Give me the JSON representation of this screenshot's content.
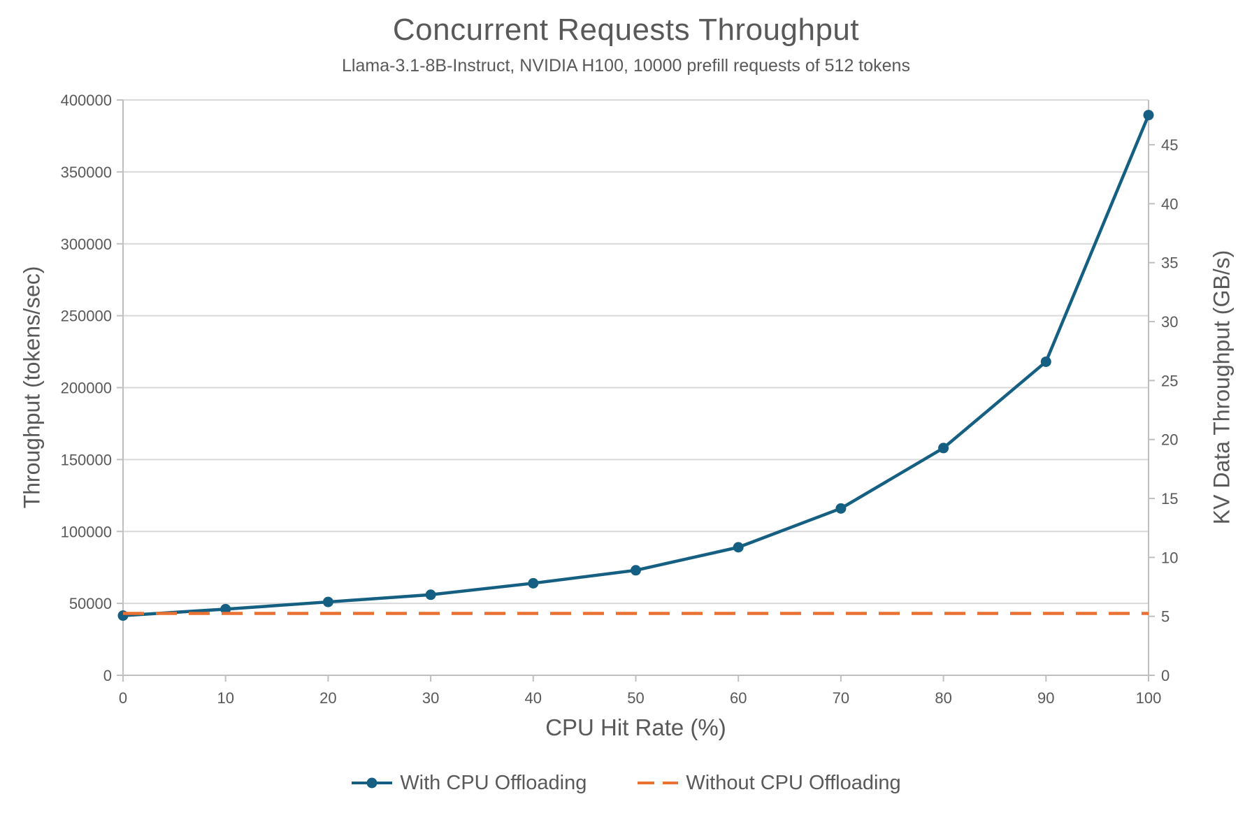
{
  "chart_data": {
    "type": "line",
    "title": "Concurrent Requests Throughput",
    "subtitle": "Llama-3.1-8B-Instruct, NVIDIA H100, 10000 prefill requests of 512 tokens",
    "xlabel": "CPU Hit Rate (%)",
    "ylabel_left": "Throughput (tokens/sec)",
    "ylabel_right": "KV Data Throughput (GB/s)",
    "x": [
      0,
      10,
      20,
      30,
      40,
      50,
      60,
      70,
      80,
      90,
      100
    ],
    "xlim": [
      0,
      100
    ],
    "xticks": [
      0,
      10,
      20,
      30,
      40,
      50,
      60,
      70,
      80,
      90,
      100
    ],
    "ylim_left": [
      0,
      400000
    ],
    "yticks_left": [
      0,
      50000,
      100000,
      150000,
      200000,
      250000,
      300000,
      350000,
      400000
    ],
    "ylim_right": [
      0,
      48.8
    ],
    "yticks_right": [
      0,
      5,
      10,
      15,
      20,
      25,
      30,
      35,
      40,
      45
    ],
    "grid": "horizontal",
    "legend_position": "bottom-center",
    "series": [
      {
        "name": "With CPU Offloading",
        "color": "#156082",
        "line_style": "solid",
        "marker": "circle",
        "values": [
          41500,
          46000,
          51000,
          56000,
          64000,
          73000,
          89000,
          116000,
          158000,
          218000,
          389500
        ]
      },
      {
        "name": "Without CPU Offloading",
        "color": "#E97132",
        "line_style": "dashed",
        "marker": "none",
        "values": [
          43000,
          43000,
          43000,
          43000,
          43000,
          43000,
          43000,
          43000,
          43000,
          43000,
          43000
        ]
      }
    ],
    "colors": {
      "gridline": "#D9D9D9",
      "axis_line": "#BFBFBF",
      "text": "#595959"
    }
  }
}
